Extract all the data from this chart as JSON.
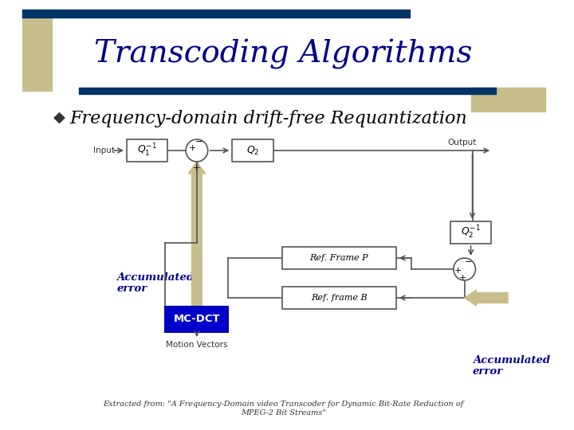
{
  "title": "Transcoding Algorithms",
  "bullet": "Frequency-domain drift-free Requantization",
  "bullet_symbol": "◆",
  "caption_line1": "Extracted from: \"A Frequency-Domain video Transcoder for Dynamic Bit-Rate Reduction of",
  "caption_line2": "MPEG-2 Bit Streams\"",
  "bg_color": "#ffffff",
  "title_color": "#00008B",
  "bullet_color": "#000000",
  "accent_color_dark": "#003366",
  "accent_color_tan": "#c8be8c",
  "mc_dct_bg": "#0000cc",
  "mc_dct_text": "#ffffff",
  "accumulated_error_color": "#00008B",
  "box_fill": "#ffffff",
  "box_edge": "#555555",
  "arrow_tan": "#c8be8c",
  "line_color": "#555555"
}
